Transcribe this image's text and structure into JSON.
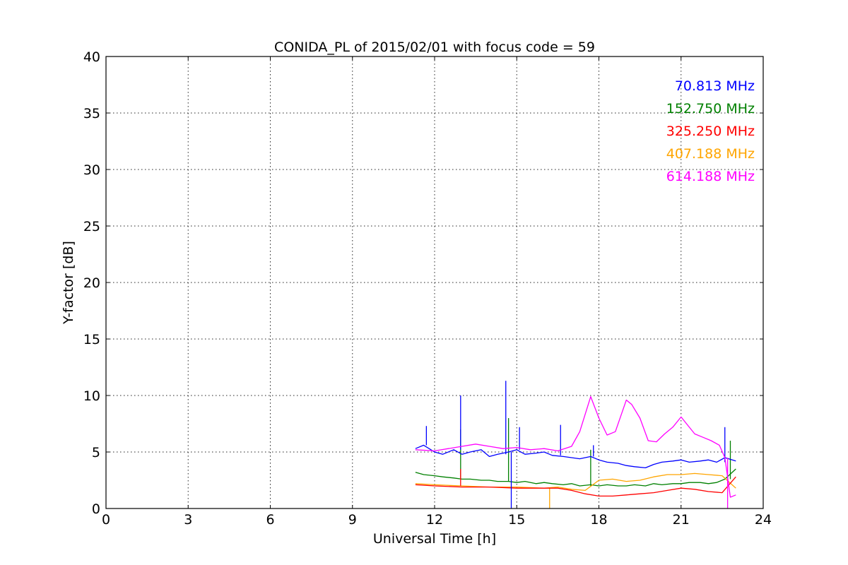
{
  "chart_data": {
    "type": "line",
    "title": "CONIDA_PL of 2015/02/01 with focus code = 59",
    "xlabel": "Universal Time [h]",
    "ylabel": "Y-factor [dB]",
    "xlim": [
      0,
      24
    ],
    "ylim": [
      0,
      40
    ],
    "xticks": [
      0,
      3,
      6,
      9,
      12,
      15,
      18,
      21,
      24
    ],
    "yticks": [
      0,
      5,
      10,
      15,
      20,
      25,
      30,
      35,
      40
    ],
    "grid": true,
    "legend_placement": "top-right",
    "series": [
      {
        "name": "70.813 MHz",
        "color": "#0000ff",
        "x": [
          11.3,
          11.6,
          12.0,
          12.3,
          12.7,
          13.0,
          13.3,
          13.7,
          14.0,
          14.3,
          14.7,
          15.0,
          15.3,
          15.7,
          16.0,
          16.3,
          16.7,
          17.0,
          17.3,
          17.7,
          18.0,
          18.3,
          18.7,
          19.0,
          19.3,
          19.7,
          20.0,
          20.3,
          20.7,
          21.0,
          21.3,
          21.7,
          22.0,
          22.3,
          22.6,
          23.0
        ],
        "y": [
          5.3,
          5.6,
          5.0,
          4.8,
          5.2,
          4.8,
          5.0,
          5.2,
          4.6,
          4.8,
          5.0,
          5.2,
          4.8,
          4.9,
          5.0,
          4.7,
          4.6,
          4.5,
          4.4,
          4.6,
          4.3,
          4.1,
          4.0,
          3.8,
          3.7,
          3.6,
          3.9,
          4.1,
          4.2,
          4.3,
          4.1,
          4.2,
          4.3,
          4.1,
          4.5,
          4.2
        ],
        "spikes": [
          [
            11.7,
            7.3
          ],
          [
            12.95,
            10.0
          ],
          [
            14.6,
            11.3
          ],
          [
            14.8,
            0.0
          ],
          [
            15.1,
            7.2
          ],
          [
            16.6,
            7.4
          ],
          [
            17.8,
            5.6
          ],
          [
            22.6,
            7.2
          ]
        ]
      },
      {
        "name": "152.750 MHz",
        "color": "#008000",
        "x": [
          11.3,
          11.6,
          12.0,
          12.3,
          12.7,
          13.0,
          13.3,
          13.7,
          14.0,
          14.3,
          14.7,
          15.0,
          15.3,
          15.7,
          16.0,
          16.3,
          16.7,
          17.0,
          17.3,
          17.7,
          18.0,
          18.3,
          18.7,
          19.0,
          19.3,
          19.7,
          20.0,
          20.3,
          20.7,
          21.0,
          21.3,
          21.7,
          22.0,
          22.3,
          22.6,
          23.0
        ],
        "y": [
          3.2,
          3.0,
          2.9,
          2.8,
          2.7,
          2.6,
          2.6,
          2.5,
          2.5,
          2.4,
          2.4,
          2.3,
          2.4,
          2.2,
          2.3,
          2.2,
          2.1,
          2.2,
          2.0,
          2.1,
          2.0,
          2.1,
          2.0,
          2.0,
          2.1,
          2.0,
          2.2,
          2.1,
          2.2,
          2.2,
          2.3,
          2.3,
          2.2,
          2.3,
          2.6,
          3.5
        ],
        "spikes": [
          [
            12.95,
            7.0
          ],
          [
            14.7,
            8.0
          ],
          [
            17.7,
            5.2
          ],
          [
            22.8,
            6.0
          ]
        ]
      },
      {
        "name": "325.250 MHz",
        "color": "#ff0000",
        "x": [
          11.3,
          12.0,
          13.0,
          14.0,
          15.0,
          16.0,
          16.5,
          17.0,
          17.5,
          18.0,
          18.5,
          19.0,
          19.5,
          20.0,
          20.5,
          21.0,
          21.5,
          22.0,
          22.5,
          23.0
        ],
        "y": [
          2.1,
          2.0,
          1.9,
          1.9,
          1.8,
          1.8,
          1.8,
          1.6,
          1.3,
          1.1,
          1.1,
          1.2,
          1.3,
          1.4,
          1.6,
          1.8,
          1.7,
          1.5,
          1.4,
          2.8
        ],
        "spikes": [
          [
            12.95,
            3.5
          ]
        ]
      },
      {
        "name": "407.188 MHz",
        "color": "#ffa500",
        "x": [
          11.3,
          12.0,
          13.0,
          14.0,
          15.0,
          16.0,
          16.5,
          17.0,
          17.5,
          18.0,
          18.5,
          19.0,
          19.5,
          20.0,
          20.5,
          21.0,
          21.5,
          22.0,
          22.5,
          23.0
        ],
        "y": [
          2.2,
          2.1,
          2.0,
          1.9,
          1.9,
          1.8,
          1.9,
          1.7,
          1.6,
          2.5,
          2.6,
          2.4,
          2.5,
          2.8,
          3.0,
          3.0,
          3.1,
          3.0,
          2.9,
          1.8
        ],
        "spikes": [
          [
            16.2,
            0.0
          ]
        ]
      },
      {
        "name": "614.188 MHz",
        "color": "#ff00ff",
        "x": [
          11.3,
          12.0,
          12.5,
          13.0,
          13.5,
          14.0,
          14.5,
          15.0,
          15.5,
          16.0,
          16.5,
          17.0,
          17.3,
          17.7,
          18.0,
          18.3,
          18.6,
          19.0,
          19.2,
          19.5,
          19.8,
          20.1,
          20.4,
          20.7,
          21.0,
          21.2,
          21.5,
          21.8,
          22.1,
          22.4,
          22.6,
          22.8,
          23.0
        ],
        "y": [
          5.2,
          5.1,
          5.3,
          5.5,
          5.7,
          5.5,
          5.3,
          5.4,
          5.2,
          5.3,
          5.1,
          5.5,
          6.8,
          9.9,
          8.0,
          6.5,
          6.8,
          9.6,
          9.2,
          8.0,
          6.0,
          5.9,
          6.6,
          7.2,
          8.1,
          7.5,
          6.6,
          6.3,
          6.0,
          5.6,
          4.5,
          1.0,
          1.2
        ],
        "spikes": [
          [
            22.7,
            0.0
          ]
        ]
      }
    ]
  }
}
